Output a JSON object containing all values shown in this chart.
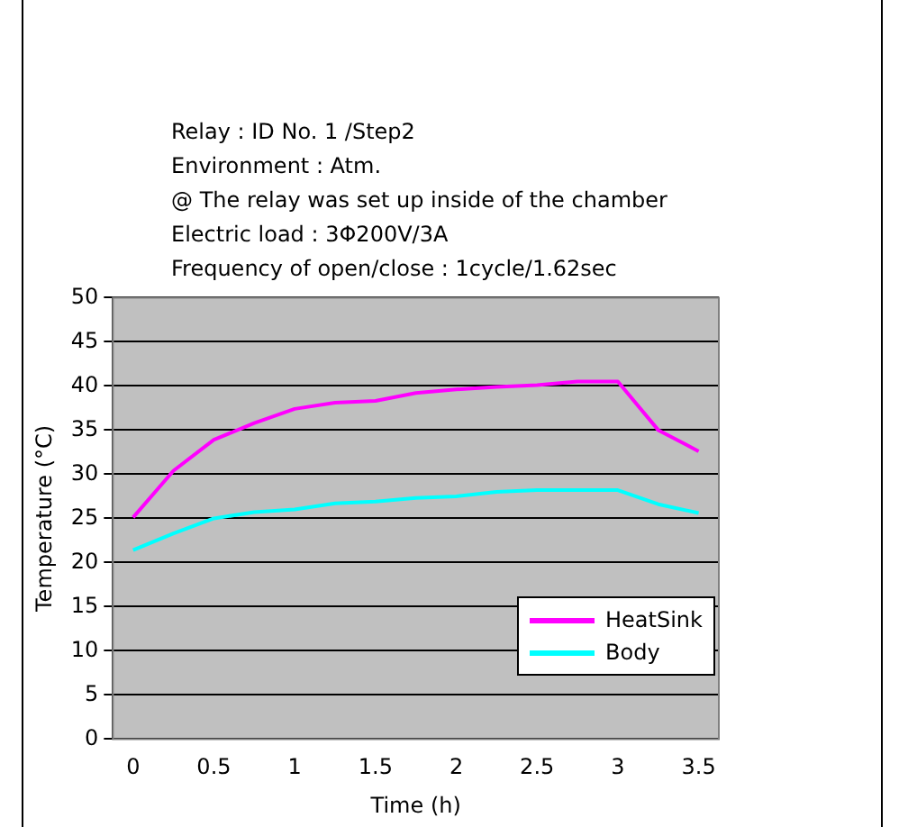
{
  "chart_data": {
    "type": "line",
    "title": "Relay : ID No. 1  /Step2",
    "annotations": [
      "Environment : Atm.",
      "@ The relay was set up inside of the chamber",
      "Electric load : 3Φ200V/3A",
      "Frequency of open/close : 1cycle/1.62sec"
    ],
    "xlabel": "Time (h)",
    "ylabel": "Temperature (°C)",
    "categories": [
      "0",
      null,
      "0.5",
      null,
      "1",
      null,
      "1.5",
      null,
      "2",
      null,
      "2.5",
      null,
      "3",
      null,
      "3.5"
    ],
    "series": [
      {
        "name": "HeatSink",
        "color": "#ff00ff",
        "values": [
          25.1,
          30.4,
          33.9,
          35.8,
          37.4,
          38.1,
          38.3,
          39.2,
          39.6,
          39.9,
          40.1,
          40.5,
          40.5,
          35.0,
          32.6
        ]
      },
      {
        "name": "Body",
        "color": "#00ffff",
        "values": [
          21.4,
          23.3,
          25.0,
          25.7,
          26.0,
          26.7,
          26.9,
          27.3,
          27.5,
          28.0,
          28.2,
          28.2,
          28.2,
          26.6,
          25.6
        ]
      }
    ],
    "ylim": [
      0,
      50
    ],
    "yticks": [
      0,
      5,
      10,
      15,
      20,
      25,
      30,
      35,
      40,
      45,
      50
    ],
    "grid": "y",
    "legend": "bottom right",
    "marker": "none",
    "line_style": "solid"
  }
}
